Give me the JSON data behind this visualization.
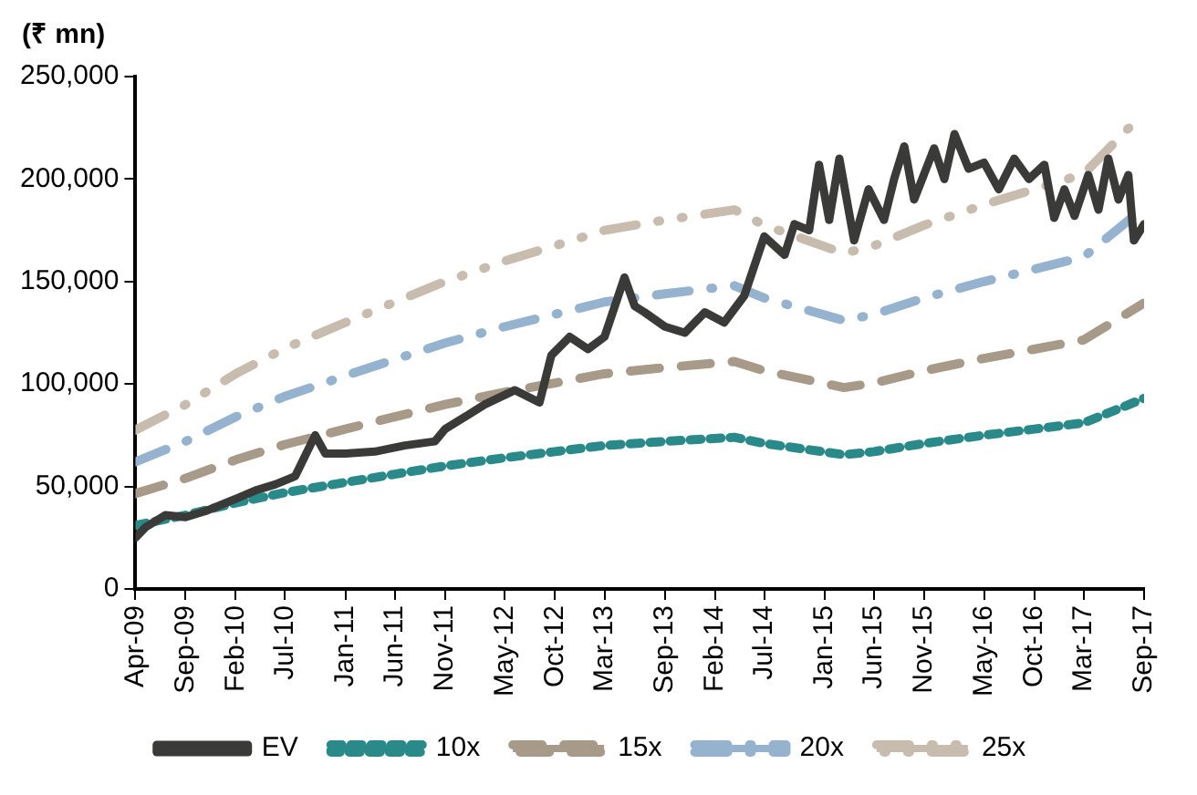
{
  "chart_data": {
    "type": "line",
    "ylabel": "(₹ mn)",
    "xlim": [
      "2009-04",
      "2017-09"
    ],
    "xticks": [
      {
        "value": "2009-04",
        "label": "Apr-09"
      },
      {
        "value": "2009-09",
        "label": "Sep-09"
      },
      {
        "value": "2010-02",
        "label": "Feb-10"
      },
      {
        "value": "2010-07",
        "label": "Jul-10"
      },
      {
        "value": "2011-01",
        "label": "Jan-11"
      },
      {
        "value": "2011-06",
        "label": "Jun-11"
      },
      {
        "value": "2011-11",
        "label": "Nov-11"
      },
      {
        "value": "2012-05",
        "label": "May-12"
      },
      {
        "value": "2012-10",
        "label": "Oct-12"
      },
      {
        "value": "2013-03",
        "label": "Mar-13"
      },
      {
        "value": "2013-09",
        "label": "Sep-13"
      },
      {
        "value": "2014-02",
        "label": "Feb-14"
      },
      {
        "value": "2014-07",
        "label": "Jul-14"
      },
      {
        "value": "2015-01",
        "label": "Jan-15"
      },
      {
        "value": "2015-06",
        "label": "Jun-15"
      },
      {
        "value": "2015-11",
        "label": "Nov-15"
      },
      {
        "value": "2016-05",
        "label": "May-16"
      },
      {
        "value": "2016-10",
        "label": "Oct-16"
      },
      {
        "value": "2017-03",
        "label": "Mar-17"
      },
      {
        "value": "2017-09",
        "label": "Sep-17"
      }
    ],
    "ylim": [
      0,
      250000
    ],
    "yticks": [
      0,
      {
        "value": 50000,
        "label": "50,000"
      },
      {
        "value": 100000,
        "label": "100,000"
      },
      {
        "value": 150000,
        "label": "150,000"
      },
      {
        "value": 200000,
        "label": "200,000"
      },
      {
        "value": 250000,
        "label": "250,000"
      }
    ],
    "grid": false,
    "legend": "bottom",
    "marker": "none",
    "series": [
      {
        "name": "EV",
        "color": "#3a3a38",
        "line_style": "solid",
        "x": [
          "2009-04-01",
          "2009-05-01",
          "2009-07-01",
          "2009-09-01",
          "2009-11-01",
          "2010-01-01",
          "2010-02-01",
          "2010-04-01",
          "2010-06-01",
          "2010-08-01",
          "2010-10-01",
          "2010-11-01",
          "2011-01-01",
          "2011-04-01",
          "2011-07-01",
          "2011-10-01",
          "2011-11-01",
          "2012-01-01",
          "2012-03-01",
          "2012-06-01",
          "2012-08-15",
          "2012-09-20",
          "2012-11-15",
          "2013-01-10",
          "2013-03-01",
          "2013-05-01",
          "2013-06-01",
          "2013-07-01",
          "2013-09-01",
          "2013-11-01",
          "2014-01-01",
          "2014-03-01",
          "2014-05-01",
          "2014-07-01",
          "2014-09-01",
          "2014-10-01",
          "2014-11-15",
          "2014-12-15",
          "2015-01-15",
          "2015-02-15",
          "2015-04-01",
          "2015-05-15",
          "2015-07-01",
          "2015-08-01",
          "2015-09-01",
          "2015-10-01",
          "2015-12-01",
          "2016-01-01",
          "2016-02-01",
          "2016-03-15",
          "2016-05-01",
          "2016-06-15",
          "2016-08-01",
          "2016-09-15",
          "2016-11-01",
          "2016-12-01",
          "2017-01-01",
          "2017-02-01",
          "2017-03-15",
          "2017-04-15",
          "2017-05-15",
          "2017-06-15",
          "2017-07-15",
          "2017-08-01",
          "2017-09-01"
        ],
        "values": [
          25000,
          30000,
          36000,
          35000,
          38000,
          42000,
          44000,
          48000,
          51000,
          55000,
          75000,
          66000,
          66000,
          67000,
          70000,
          72000,
          78000,
          84000,
          90000,
          97000,
          91000,
          114000,
          123000,
          117000,
          123000,
          152000,
          138000,
          135000,
          128000,
          125000,
          135000,
          130000,
          143000,
          172000,
          163000,
          178000,
          175000,
          207000,
          180000,
          210000,
          170000,
          195000,
          180000,
          200000,
          216000,
          190000,
          215000,
          200000,
          222000,
          205000,
          208000,
          195000,
          210000,
          200000,
          207000,
          181000,
          195000,
          182000,
          202000,
          185000,
          210000,
          190000,
          202000,
          170000,
          178000
        ]
      },
      {
        "name": "10x",
        "color": "#2a8a8a",
        "line_style": "dashed",
        "x": [
          "2009-04",
          "2009-09",
          "2010-02",
          "2010-07",
          "2011-01",
          "2011-06",
          "2011-11",
          "2012-05",
          "2012-10",
          "2013-03",
          "2013-09",
          "2014-04",
          "2014-07",
          "2015-03",
          "2015-06",
          "2015-11",
          "2016-05",
          "2016-10",
          "2017-03",
          "2017-09"
        ],
        "values": [
          31000,
          36000,
          42000,
          47000,
          52000,
          56000,
          60000,
          64000,
          67000,
          70000,
          72000,
          74000,
          71000,
          65500,
          67000,
          71000,
          75000,
          78000,
          81000,
          93000
        ]
      },
      {
        "name": "15x",
        "color": "#a89a88",
        "line_style": "dashed",
        "x": [
          "2009-04",
          "2009-09",
          "2010-02",
          "2010-07",
          "2011-01",
          "2011-06",
          "2011-11",
          "2012-05",
          "2012-10",
          "2013-03",
          "2013-09",
          "2014-04",
          "2014-07",
          "2015-03",
          "2015-06",
          "2015-11",
          "2016-05",
          "2016-10",
          "2017-03",
          "2017-09"
        ],
        "values": [
          46500,
          54000,
          63000,
          70500,
          78000,
          84000,
          90000,
          96000,
          100500,
          105000,
          108000,
          111000,
          106500,
          98250,
          100500,
          106500,
          112500,
          117000,
          121500,
          139500
        ]
      },
      {
        "name": "20x",
        "color": "#95b3cf",
        "line_style": "dashed",
        "x": [
          "2009-04",
          "2009-09",
          "2010-02",
          "2010-07",
          "2011-01",
          "2011-06",
          "2011-11",
          "2012-05",
          "2012-10",
          "2013-03",
          "2013-09",
          "2014-04",
          "2014-07",
          "2015-03",
          "2015-06",
          "2015-11",
          "2016-05",
          "2016-10",
          "2017-03",
          "2017-09"
        ],
        "values": [
          62000,
          72000,
          84000,
          94000,
          104000,
          112000,
          120000,
          128000,
          134000,
          140000,
          144000,
          148000,
          142000,
          131000,
          134000,
          142000,
          150000,
          156000,
          162000,
          186000
        ]
      },
      {
        "name": "25x",
        "color": "#c8bcae",
        "line_style": "dashed",
        "x": [
          "2009-04",
          "2009-09",
          "2010-02",
          "2010-07",
          "2011-01",
          "2011-06",
          "2011-11",
          "2012-05",
          "2012-10",
          "2013-03",
          "2013-09",
          "2014-04",
          "2014-07",
          "2015-03",
          "2015-06",
          "2015-11",
          "2016-05",
          "2016-10",
          "2017-03",
          "2017-09"
        ],
        "values": [
          77500,
          90000,
          105000,
          117500,
          130000,
          140000,
          150000,
          160000,
          167500,
          175000,
          180000,
          185000,
          177500,
          163750,
          167500,
          177500,
          187500,
          195000,
          202500,
          232500
        ]
      }
    ]
  }
}
